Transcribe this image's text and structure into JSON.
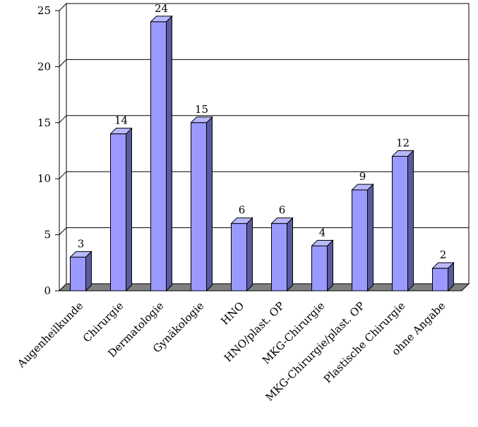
{
  "chart_data": {
    "type": "bar",
    "title": "",
    "xlabel": "",
    "ylabel": "",
    "categories": [
      "Augenheilkunde",
      "Chirurgie",
      "Dermatologie",
      "Gynäkologie",
      "HNO",
      "HNO/plast. OP",
      "MKG-Chirurgie",
      "MKG-Chirurgie/plast. OP",
      "Plastische Chirurgie",
      "ohne Angabe"
    ],
    "values": [
      3,
      14,
      24,
      15,
      6,
      6,
      4,
      9,
      12,
      2
    ],
    "data_labels": [
      "3",
      "14",
      "24",
      "15",
      "6",
      "6",
      "4",
      "9",
      "12",
      "2"
    ],
    "ylim": [
      0,
      25
    ],
    "yticks": [
      0,
      5,
      10,
      15,
      20,
      25
    ],
    "ytick_labels": [
      "0",
      "5",
      "10",
      "15",
      "20",
      "25"
    ],
    "grid": true,
    "legend": "none",
    "style": "3d",
    "colors": {
      "bar_front": "#9999ff",
      "bar_side": "#5a5a9e",
      "bar_top": "#b8b8ff",
      "bar_edge": "#000000",
      "floor": "#808080",
      "wall": "#ffffff",
      "gridline": "#000000"
    }
  }
}
